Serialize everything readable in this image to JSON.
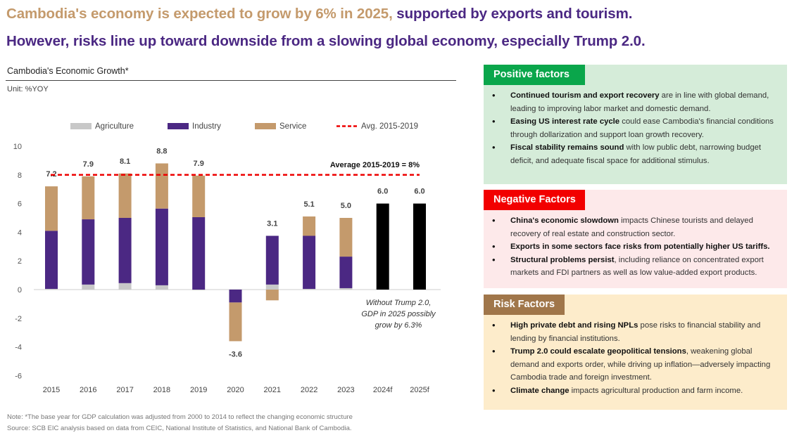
{
  "title": {
    "line1_highlight": "Cambodia's economy is expected to grow by 6% in 2025,",
    "line1_rest": " supported by exports and tourism.",
    "line2": "However, risks line up toward downside from a slowing global economy, especially Trump 2.0."
  },
  "colors": {
    "agriculture": "#c8c8c8",
    "industry": "#4b2883",
    "service": "#c49a6c",
    "forecast": "#000000",
    "avg_line": "#ee0000",
    "positive": "#0aa64b",
    "negative": "#f20000",
    "risk": "#a0764a"
  },
  "chart_data": {
    "type": "bar",
    "stacked": true,
    "title": "Cambodia's Economic Growth*",
    "unit": "Unit: %YOY",
    "categories": [
      "2015",
      "2016",
      "2017",
      "2018",
      "2019",
      "2020",
      "2021",
      "2022",
      "2023",
      "2024f",
      "2025f"
    ],
    "series": [
      {
        "name": "Agriculture",
        "values": [
          0.05,
          0.35,
          0.45,
          0.3,
          -0.05,
          0,
          0.35,
          0.05,
          0.1,
          null,
          null
        ]
      },
      {
        "name": "Industry",
        "values": [
          4.05,
          4.55,
          4.55,
          5.35,
          5.05,
          -0.9,
          3.4,
          3.7,
          2.2,
          null,
          null
        ]
      },
      {
        "name": "Service",
        "values": [
          3.1,
          3.0,
          3.1,
          3.15,
          2.9,
          -2.7,
          -0.75,
          1.35,
          2.7,
          null,
          null
        ]
      },
      {
        "name": "Forecast",
        "values": [
          null,
          null,
          null,
          null,
          null,
          null,
          null,
          null,
          null,
          6.0,
          6.0
        ]
      }
    ],
    "totals": [
      "7.2",
      "7.9",
      "8.1",
      "8.8",
      "7.9",
      "-3.6",
      "3.1",
      "5.1",
      "5.0",
      "6.0",
      "6.0"
    ],
    "avg_line": {
      "name": "Avg. 2015-2019",
      "value": 8,
      "label": "Average 2015-2019 = 8%"
    },
    "annotation": [
      "Without Trump 2.0,",
      "GDP in 2025 possibly",
      "grow by 6.3%"
    ],
    "ylim": [
      -6,
      10
    ],
    "yticks": [
      "-6",
      "-4",
      "-2",
      "0",
      "2",
      "4",
      "6",
      "8",
      "10"
    ],
    "legend": [
      "Agriculture",
      "Industry",
      "Service",
      "Avg. 2015-2019"
    ],
    "legend_position": "top",
    "grid": false
  },
  "notes": [
    "Note: *The base year for GDP calculation was adjusted from 2000 to 2014 to reflect the changing economic structure",
    "Source: SCB EIC analysis based on data from CEIC, National Institute of Statistics, and National Bank of Cambodia."
  ],
  "positive": {
    "title": "Positive factors",
    "items": [
      {
        "b": "Continued tourism and export recovery",
        "t": " are in line with global demand, leading to improving labor market and domestic demand."
      },
      {
        "b": "Easing US interest rate cycle",
        "t": " could ease Cambodia's financial conditions through dollarization and support loan growth recovery."
      },
      {
        "b": "Fiscal stability remains sound",
        "t": " with low public debt, narrowing budget deficit, and adequate fiscal space for additional stimulus."
      }
    ]
  },
  "negative": {
    "title": "Negative Factors",
    "items": [
      {
        "b": "China's economic slowdown",
        "t": " impacts Chinese tourists and delayed recovery of real estate and construction sector."
      },
      {
        "b": "Exports in some sectors face risks from potentially higher US tariffs.",
        "t": ""
      },
      {
        "b": "Structural problems persist",
        "t": ", including reliance on concentrated export markets and FDI partners as well as low value-added export products."
      }
    ]
  },
  "risk": {
    "title": "Risk Factors",
    "items": [
      {
        "b": "High private debt and rising NPLs",
        "t": " pose risks to financial stability and lending by financial institutions."
      },
      {
        "b": "Trump 2.0 could escalate geopolitical tensions",
        "t": ", weakening global demand and exports order, while driving up inflation—adversely impacting Cambodia trade and foreign investment."
      },
      {
        "b": "Climate change",
        "t": " impacts agricultural production and farm income."
      }
    ]
  }
}
